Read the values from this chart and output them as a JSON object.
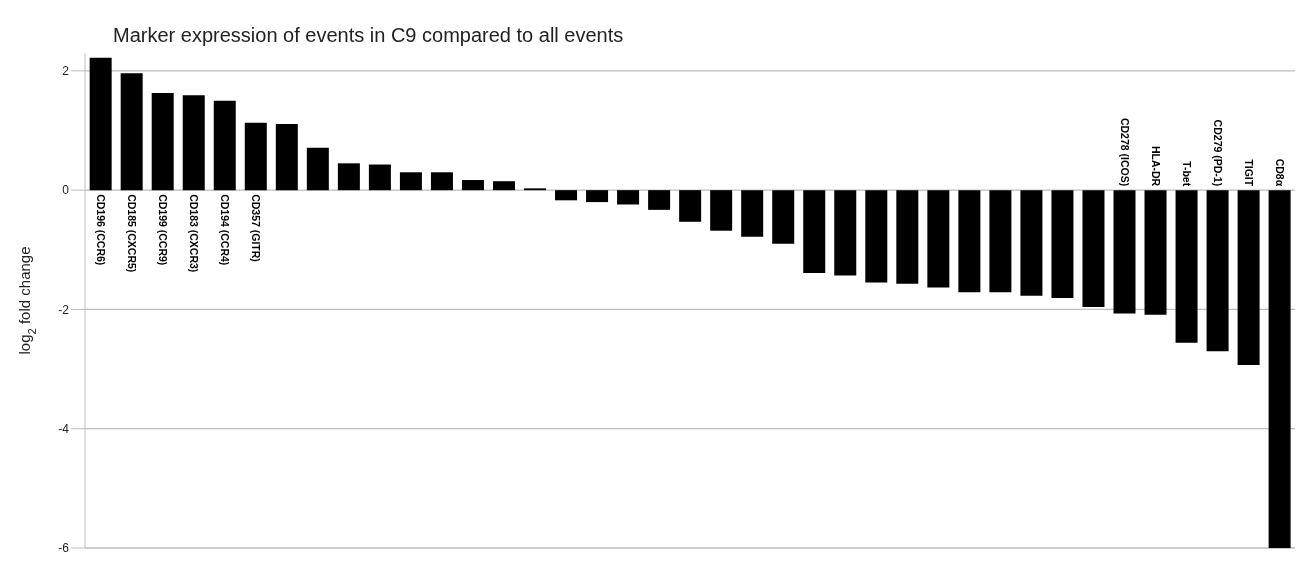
{
  "chart_data": {
    "type": "bar",
    "title": "Marker expression of events in C9 compared to all events",
    "ylabel": "log$_{2}$ fold change",
    "categories": [
      "CD196 (CCR6)",
      "CD185 (CXCR5)",
      "CD199 (CCR9)",
      "CD183 (CXCR3)",
      "CD194 (CCR4)",
      "CD357 (GITR)",
      null,
      null,
      null,
      null,
      null,
      null,
      null,
      null,
      null,
      null,
      null,
      null,
      null,
      null,
      null,
      null,
      null,
      null,
      null,
      null,
      null,
      null,
      null,
      null,
      null,
      null,
      null,
      "CD278 (ICOS)",
      "HLA-DR",
      "T-bet",
      "CD279 (PD-1)",
      "TIGIT",
      "CD8α"
    ],
    "values": [
      2.22,
      1.96,
      1.63,
      1.59,
      1.5,
      1.13,
      1.11,
      0.71,
      0.45,
      0.43,
      0.3,
      0.3,
      0.17,
      0.15,
      0.03,
      -0.17,
      -0.2,
      -0.24,
      -0.33,
      -0.53,
      -0.68,
      -0.78,
      -0.9,
      -1.39,
      -1.43,
      -1.55,
      -1.57,
      -1.63,
      -1.71,
      -1.71,
      -1.77,
      -1.81,
      -1.96,
      -2.07,
      -2.09,
      -2.56,
      -2.7,
      -2.93,
      -6.0
    ],
    "color": "#000000",
    "ylim": [
      -6,
      2.3
    ],
    "yticks": [
      -6,
      -4,
      -2,
      0,
      2
    ],
    "grid": "y",
    "legend": false
  }
}
